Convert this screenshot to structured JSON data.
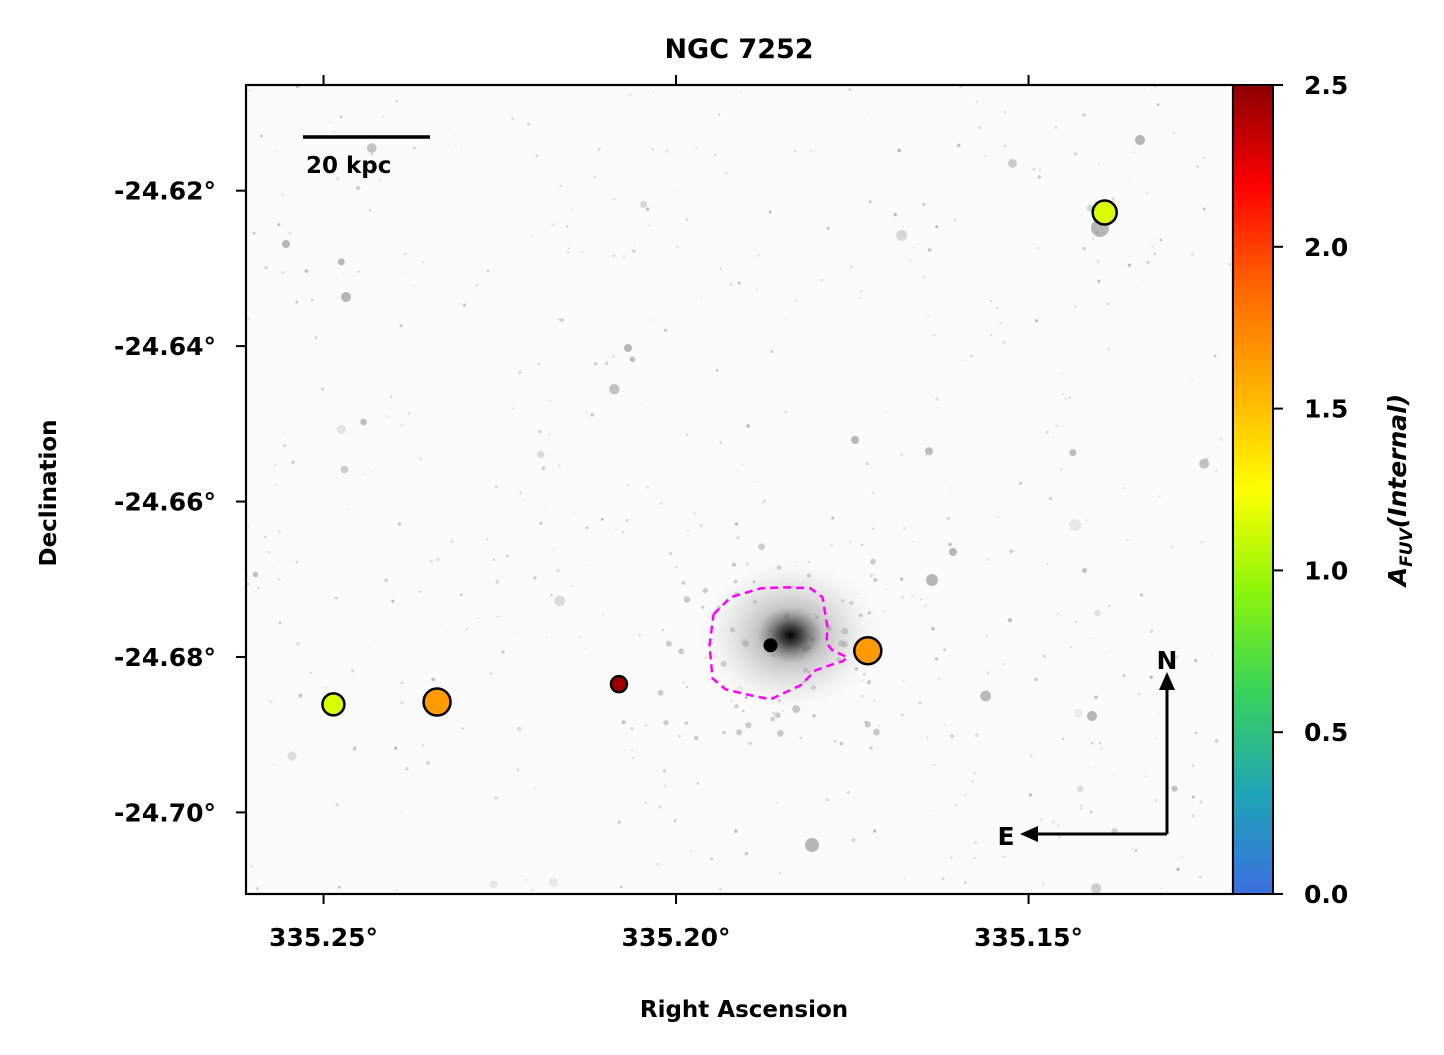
{
  "chart_data": {
    "type": "scatter",
    "title": "NGC 7252",
    "xlabel": "Right Ascension",
    "ylabel": "Declination",
    "xlim": [
      335.261,
      335.121
    ],
    "ylim": [
      -24.7105,
      -24.6064
    ],
    "x_ticks": [
      {
        "value": 335.25,
        "label": "335.25°"
      },
      {
        "value": 335.2,
        "label": "335.20°"
      },
      {
        "value": 335.15,
        "label": "335.15°"
      }
    ],
    "y_ticks": [
      {
        "value": -24.62,
        "label": "-24.62°"
      },
      {
        "value": -24.64,
        "label": "-24.64°"
      },
      {
        "value": -24.66,
        "label": "-24.66°"
      },
      {
        "value": -24.68,
        "label": "-24.68°"
      },
      {
        "value": -24.7,
        "label": "-24.70°"
      }
    ],
    "scale_bar_label": "20 kpc",
    "compass": {
      "north": "N",
      "east": "E"
    },
    "points": [
      {
        "ra": 335.2486,
        "dec": -24.6861,
        "a_fuv": 1.15,
        "size": "small"
      },
      {
        "ra": 335.2339,
        "dec": -24.6858,
        "a_fuv": 1.65,
        "size": "large"
      },
      {
        "ra": 335.2081,
        "dec": -24.6835,
        "a_fuv": 2.45,
        "size": "tiny"
      },
      {
        "ra": 335.1728,
        "dec": -24.6792,
        "a_fuv": 1.65,
        "size": "large"
      },
      {
        "ra": 335.1392,
        "dec": -24.6228,
        "a_fuv": 1.15,
        "size": "medium"
      }
    ],
    "galaxy_center": {
      "ra": 335.1866,
      "dec": -24.6785
    },
    "contour_color": "#ff00ff",
    "colorbar": {
      "label_main": "A",
      "label_sub": "FUV",
      "label_paren": "(Internal)",
      "range": [
        0.0,
        2.5
      ],
      "ticks": [
        {
          "value": 0.0,
          "label": "0.0"
        },
        {
          "value": 0.5,
          "label": "0.5"
        },
        {
          "value": 1.0,
          "label": "1.0"
        },
        {
          "value": 1.5,
          "label": "1.5"
        },
        {
          "value": 2.0,
          "label": "2.0"
        },
        {
          "value": 2.5,
          "label": "2.5"
        }
      ],
      "colormap": [
        "#3b6fe0",
        "#1fa5b6",
        "#37d35a",
        "#8cf50a",
        "#ffff00",
        "#ffb000",
        "#ff6600",
        "#ff0000",
        "#8b0000"
      ]
    },
    "grid": false
  }
}
